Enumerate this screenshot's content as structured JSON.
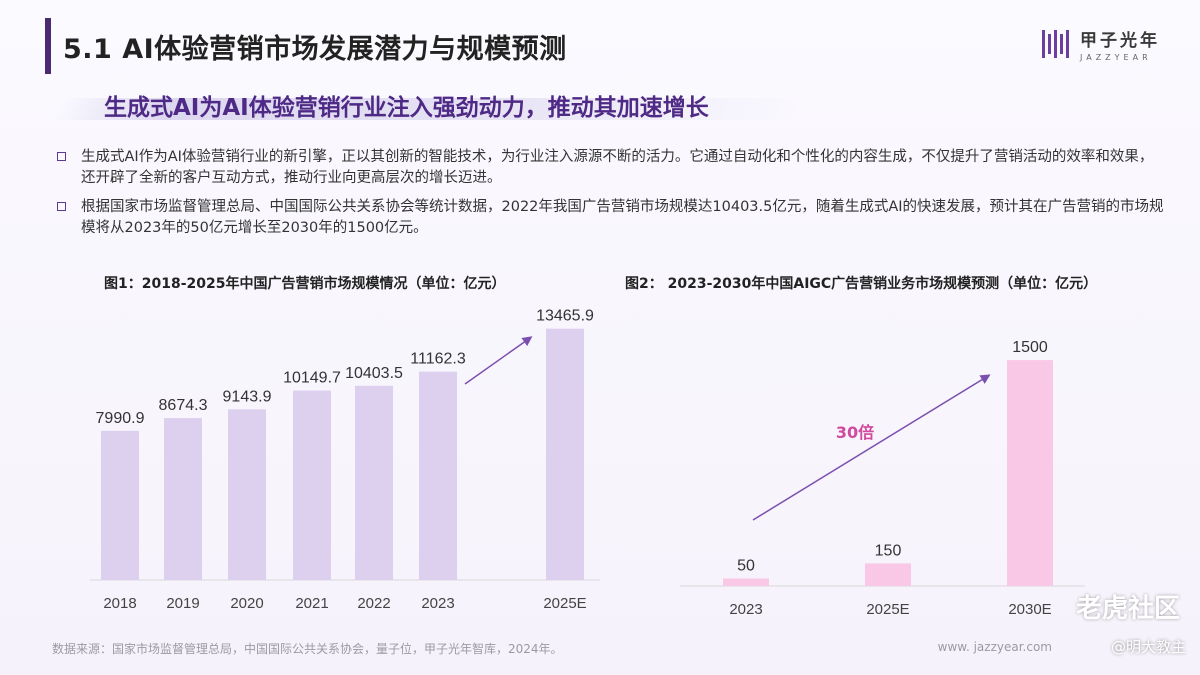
{
  "header": {
    "title": "5.1 AI体验营销市场发展潜力与规模预测",
    "logo_cn": "甲子光年",
    "logo_en": "JAZZYEAR"
  },
  "subtitle": "生成式AI为AI体验营销行业注入强劲动力，推动其加速增长",
  "bullets": [
    "生成式AI作为AI体验营销行业的新引擎，正以其创新的智能技术，为行业注入源源不断的活力。它通过自动化和个性化的内容生成，不仅提升了营销活动的效率和效果，还开辟了全新的客户互动方式，推动行业向更高层次的增长迈进。",
    "根据国家市场监督管理总局、中国国际公共关系协会等统计数据，2022年我国广告营销市场规模达10403.5亿元，随着生成式AI的快速发展，预计其在广告营销的市场规模将从2023年的50亿元增长至2030年的1500亿元。"
  ],
  "chart_data": [
    {
      "type": "bar",
      "title": "图1：2018-2025年中国广告营销市场规模情况（单位：亿元）",
      "categories": [
        "2018",
        "2019",
        "2020",
        "2021",
        "2022",
        "2023",
        "2025E"
      ],
      "values": [
        7990.9,
        8674.3,
        9143.9,
        10149.7,
        10403.5,
        11162.3,
        13465.9
      ],
      "value_labels": [
        "7990.9",
        "8674.3",
        "9143.9",
        "10149.7",
        "10403.5",
        "11162.3",
        "13465.9"
      ],
      "ylim": [
        0,
        15000
      ],
      "bar_color": "#ddd0ef",
      "arrow_color": "#7b4fb0",
      "grid": false
    },
    {
      "type": "bar",
      "title": "图2： 2023-2030年中国AIGC广告营销业务市场规模预测（单位：亿元）",
      "categories": [
        "2023",
        "2025E",
        "2030E"
      ],
      "values": [
        50,
        150,
        1500
      ],
      "value_labels": [
        "50",
        "150",
        "1500"
      ],
      "ylim": [
        0,
        1700
      ],
      "bar_color": "#f9c8e6",
      "arrow_color": "#7b4fb0",
      "annotation": "30倍",
      "annotation_color": "#d14aa0",
      "grid": false
    }
  ],
  "footer": {
    "source": "数据来源：国家市场监督管理总局，中国国际公共关系协会，量子位，甲子光年智库，2024年。",
    "website": "www. jazzyear.com"
  },
  "watermark": {
    "brand": "老虎社区",
    "user": "@明大教主"
  }
}
